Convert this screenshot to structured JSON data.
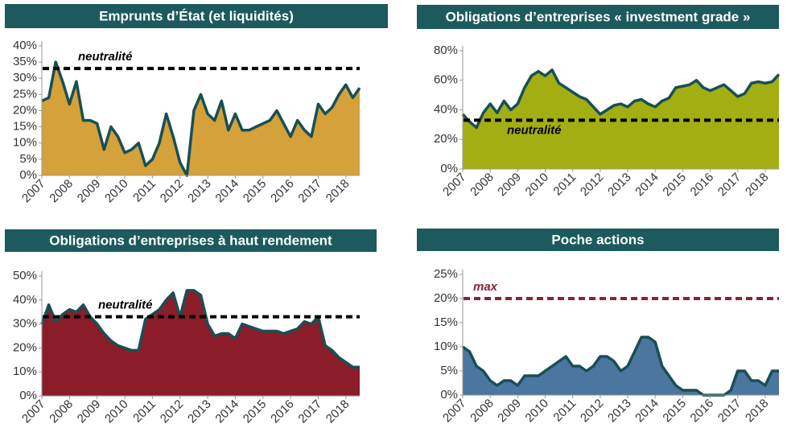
{
  "chart_data": [
    {
      "type": "area",
      "title": "Emprunts d’État (et liquidités)",
      "x": [
        2007,
        2007.25,
        2007.5,
        2007.75,
        2008,
        2008.25,
        2008.5,
        2008.75,
        2009,
        2009.25,
        2009.5,
        2009.75,
        2010,
        2010.25,
        2010.5,
        2010.75,
        2011,
        2011.25,
        2011.5,
        2011.75,
        2012,
        2012.25,
        2012.5,
        2012.75,
        2013,
        2013.25,
        2013.5,
        2013.75,
        2014,
        2014.25,
        2014.5,
        2014.75,
        2015,
        2015.25,
        2015.5,
        2015.75,
        2016,
        2016.25,
        2016.5,
        2016.75,
        2017,
        2017.25,
        2017.5,
        2017.75,
        2018,
        2018.25,
        2018.5
      ],
      "values": [
        23,
        24,
        35,
        29,
        22,
        29,
        17,
        17,
        16,
        8,
        15,
        12,
        7,
        8,
        10,
        3,
        5,
        10,
        19,
        12,
        4,
        0,
        20,
        25,
        19,
        17,
        23,
        14,
        19,
        14,
        14,
        15,
        16,
        17,
        20,
        16,
        12,
        17,
        14,
        12,
        22,
        19,
        21,
        25,
        28,
        24,
        27
      ],
      "color": "#d4a13a",
      "line_color": "#184f54",
      "xlim": [
        2007,
        2018.5
      ],
      "xticks": [
        2007,
        2008,
        2009,
        2010,
        2011,
        2012,
        2013,
        2014,
        2015,
        2016,
        2017,
        2018
      ],
      "ylim": [
        0,
        40
      ],
      "yticks": [
        {
          "value": 0,
          "label": "0%"
        },
        {
          "value": 5,
          "label": "5%"
        },
        {
          "value": 10,
          "label": "10%"
        },
        {
          "value": 15,
          "label": "15%"
        },
        {
          "value": 20,
          "label": "20%"
        },
        {
          "value": 25,
          "label": "25%"
        },
        {
          "value": 30,
          "label": "30%"
        },
        {
          "value": 35,
          "label": "35%"
        },
        {
          "value": 40,
          "label": "40%"
        }
      ],
      "reference": {
        "value": 33,
        "label": "neutralité",
        "color": "#000000"
      }
    },
    {
      "type": "area",
      "title": "Obligations d’entreprises « investment grade »",
      "x": [
        2007,
        2007.25,
        2007.5,
        2007.75,
        2008,
        2008.25,
        2008.5,
        2008.75,
        2009,
        2009.25,
        2009.5,
        2009.75,
        2010,
        2010.25,
        2010.5,
        2010.75,
        2011,
        2011.25,
        2011.5,
        2011.75,
        2012,
        2012.25,
        2012.5,
        2012.75,
        2013,
        2013.25,
        2013.5,
        2013.75,
        2014,
        2014.25,
        2014.5,
        2014.75,
        2015,
        2015.25,
        2015.5,
        2015.75,
        2016,
        2016.25,
        2016.5,
        2016.75,
        2017,
        2017.25,
        2017.5,
        2017.75,
        2018,
        2018.25,
        2018.5
      ],
      "values": [
        37,
        32,
        28,
        38,
        44,
        38,
        46,
        40,
        44,
        55,
        63,
        66,
        63,
        67,
        58,
        55,
        52,
        49,
        47,
        42,
        37,
        40,
        43,
        44,
        42,
        46,
        47,
        44,
        42,
        46,
        48,
        55,
        56,
        57,
        60,
        55,
        53,
        55,
        57,
        53,
        49,
        51,
        58,
        59,
        58,
        59,
        64
      ],
      "color": "#a2ae12",
      "line_color": "#184f54",
      "xlim": [
        2007,
        2018.5
      ],
      "xticks": [
        2007,
        2008,
        2009,
        2010,
        2011,
        2012,
        2013,
        2014,
        2015,
        2016,
        2017,
        2018
      ],
      "ylim": [
        0,
        80
      ],
      "yticks": [
        {
          "value": 0,
          "label": "0%"
        },
        {
          "value": 20,
          "label": "20%"
        },
        {
          "value": 40,
          "label": "40%"
        },
        {
          "value": 60,
          "label": "60%"
        },
        {
          "value": 80,
          "label": "80%"
        }
      ],
      "reference": {
        "value": 33,
        "label": "neutralité",
        "color": "#000000"
      }
    },
    {
      "type": "area",
      "title": "Obligations d’entreprises à haut rendement",
      "x": [
        2007,
        2007.25,
        2007.5,
        2007.75,
        2008,
        2008.25,
        2008.5,
        2008.75,
        2009,
        2009.25,
        2009.5,
        2009.75,
        2010,
        2010.25,
        2010.5,
        2010.75,
        2011,
        2011.25,
        2011.5,
        2011.75,
        2012,
        2012.25,
        2012.5,
        2012.75,
        2013,
        2013.25,
        2013.5,
        2013.75,
        2014,
        2014.25,
        2014.5,
        2014.75,
        2015,
        2015.25,
        2015.5,
        2015.75,
        2016,
        2016.25,
        2016.5,
        2016.75,
        2017,
        2017.25,
        2017.5,
        2017.75,
        2018,
        2018.25,
        2018.5
      ],
      "values": [
        30,
        38,
        31,
        34,
        36,
        35,
        38,
        33,
        30,
        26,
        23,
        21,
        20,
        19,
        19,
        32,
        34,
        36,
        40,
        43,
        33,
        44,
        44,
        42,
        30,
        25,
        26,
        26,
        24,
        30,
        29,
        28,
        27,
        27,
        27,
        26,
        27,
        28,
        31,
        30,
        33,
        21,
        19,
        16,
        14,
        12,
        12
      ],
      "color": "#8b1c2a",
      "line_color": "#184f54",
      "xlim": [
        2007,
        2018.5
      ],
      "xticks": [
        2007,
        2008,
        2009,
        2010,
        2011,
        2012,
        2013,
        2014,
        2015,
        2016,
        2017,
        2018
      ],
      "ylim": [
        0,
        50
      ],
      "yticks": [
        {
          "value": 0,
          "label": "0%"
        },
        {
          "value": 10,
          "label": "10%"
        },
        {
          "value": 20,
          "label": "20%"
        },
        {
          "value": 30,
          "label": "30%"
        },
        {
          "value": 40,
          "label": "40%"
        },
        {
          "value": 50,
          "label": "50%"
        }
      ],
      "reference": {
        "value": 33,
        "label": "neutralité",
        "color": "#000000"
      }
    },
    {
      "type": "area",
      "title": "Poche actions",
      "x": [
        2007,
        2007.25,
        2007.5,
        2007.75,
        2008,
        2008.25,
        2008.5,
        2008.75,
        2009,
        2009.25,
        2009.5,
        2009.75,
        2010,
        2010.25,
        2010.5,
        2010.75,
        2011,
        2011.25,
        2011.5,
        2011.75,
        2012,
        2012.25,
        2012.5,
        2012.75,
        2013,
        2013.25,
        2013.5,
        2013.75,
        2014,
        2014.25,
        2014.5,
        2014.75,
        2015,
        2015.25,
        2015.5,
        2015.75,
        2016,
        2016.25,
        2016.5,
        2016.75,
        2017,
        2017.25,
        2017.5,
        2017.75,
        2018,
        2018.25,
        2018.5
      ],
      "values": [
        10,
        9,
        6,
        5,
        3,
        2,
        3,
        3,
        2,
        4,
        4,
        4,
        5,
        6,
        7,
        8,
        6,
        6,
        5,
        6,
        8,
        8,
        7,
        5,
        6,
        9,
        12,
        12,
        11,
        6,
        4,
        2,
        1,
        1,
        1,
        0,
        0,
        0,
        0,
        1,
        5,
        5,
        3,
        3,
        2,
        5,
        5
      ],
      "color": "#4a76a0",
      "line_color": "#184f54",
      "xlim": [
        2007,
        2018.5
      ],
      "xticks": [
        2007,
        2008,
        2009,
        2010,
        2011,
        2012,
        2013,
        2014,
        2015,
        2016,
        2017,
        2018
      ],
      "ylim": [
        0,
        25
      ],
      "yticks": [
        {
          "value": 0,
          "label": "0%"
        },
        {
          "value": 5,
          "label": "5%"
        },
        {
          "value": 10,
          "label": "10%"
        },
        {
          "value": 15,
          "label": "15%"
        },
        {
          "value": 20,
          "label": "20%"
        },
        {
          "value": 25,
          "label": "25%"
        }
      ],
      "reference": {
        "value": 20,
        "label": "max",
        "color": "#8b2232"
      }
    }
  ]
}
